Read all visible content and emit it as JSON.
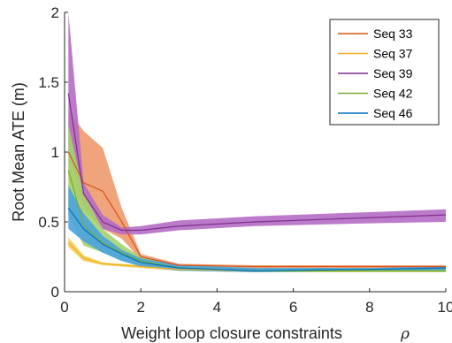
{
  "chart_data": {
    "type": "line",
    "xlabel": "Weight loop closure constraints",
    "xlabel_symbol": "ρ",
    "ylabel": "Root Mean ATE (m)",
    "xlim": [
      0,
      10
    ],
    "ylim": [
      0,
      2
    ],
    "xticks": [
      "0",
      "2",
      "4",
      "6",
      "8",
      "10"
    ],
    "yticks": [
      "0",
      "0.5",
      "1",
      "1.5",
      "2"
    ],
    "grid": false,
    "legend_position": "top-right",
    "x": [
      0.1,
      0.5,
      1,
      1.5,
      2,
      3,
      5,
      8,
      10
    ],
    "series": [
      {
        "name": "Seq 33",
        "color": "#D95319",
        "band_color": "#EE9A6E",
        "mean": [
          1.0,
          0.78,
          0.72,
          0.5,
          0.25,
          0.19,
          0.18,
          0.18,
          0.18
        ],
        "lower": [
          0.8,
          0.58,
          0.45,
          0.38,
          0.23,
          0.18,
          0.17,
          0.17,
          0.17
        ],
        "upper": [
          1.3,
          1.15,
          1.03,
          0.6,
          0.27,
          0.2,
          0.19,
          0.19,
          0.19
        ]
      },
      {
        "name": "Seq 37",
        "color": "#EDB120",
        "band_color": "#F5CC55",
        "mean": [
          0.35,
          0.24,
          0.2,
          0.19,
          0.18,
          0.16,
          0.15,
          0.15,
          0.15
        ],
        "lower": [
          0.32,
          0.22,
          0.19,
          0.18,
          0.17,
          0.15,
          0.14,
          0.14,
          0.14
        ],
        "upper": [
          0.39,
          0.26,
          0.21,
          0.2,
          0.19,
          0.17,
          0.16,
          0.16,
          0.16
        ]
      },
      {
        "name": "Seq 39",
        "color": "#7E2F8E",
        "band_color": "#B56DC4",
        "mean": [
          1.42,
          0.7,
          0.5,
          0.44,
          0.44,
          0.47,
          0.5,
          0.53,
          0.55
        ],
        "lower": [
          1.0,
          0.62,
          0.45,
          0.41,
          0.41,
          0.44,
          0.47,
          0.49,
          0.5
        ],
        "upper": [
          2.0,
          0.78,
          0.55,
          0.46,
          0.47,
          0.51,
          0.54,
          0.57,
          0.59
        ]
      },
      {
        "name": "Seq 42",
        "color": "#77AC30",
        "band_color": "#A4D36A",
        "mean": [
          0.87,
          0.48,
          0.35,
          0.28,
          0.22,
          0.17,
          0.15,
          0.15,
          0.15
        ],
        "lower": [
          0.55,
          0.33,
          0.28,
          0.22,
          0.19,
          0.15,
          0.14,
          0.14,
          0.14
        ],
        "upper": [
          1.2,
          0.7,
          0.45,
          0.34,
          0.25,
          0.19,
          0.17,
          0.17,
          0.17
        ]
      },
      {
        "name": "Seq 46",
        "color": "#0072BD",
        "band_color": "#4AA3DF",
        "mean": [
          0.6,
          0.45,
          0.34,
          0.27,
          0.21,
          0.17,
          0.15,
          0.16,
          0.17
        ],
        "lower": [
          0.45,
          0.36,
          0.28,
          0.22,
          0.18,
          0.15,
          0.14,
          0.15,
          0.15
        ],
        "upper": [
          0.76,
          0.56,
          0.4,
          0.3,
          0.24,
          0.19,
          0.17,
          0.17,
          0.18
        ]
      }
    ]
  }
}
